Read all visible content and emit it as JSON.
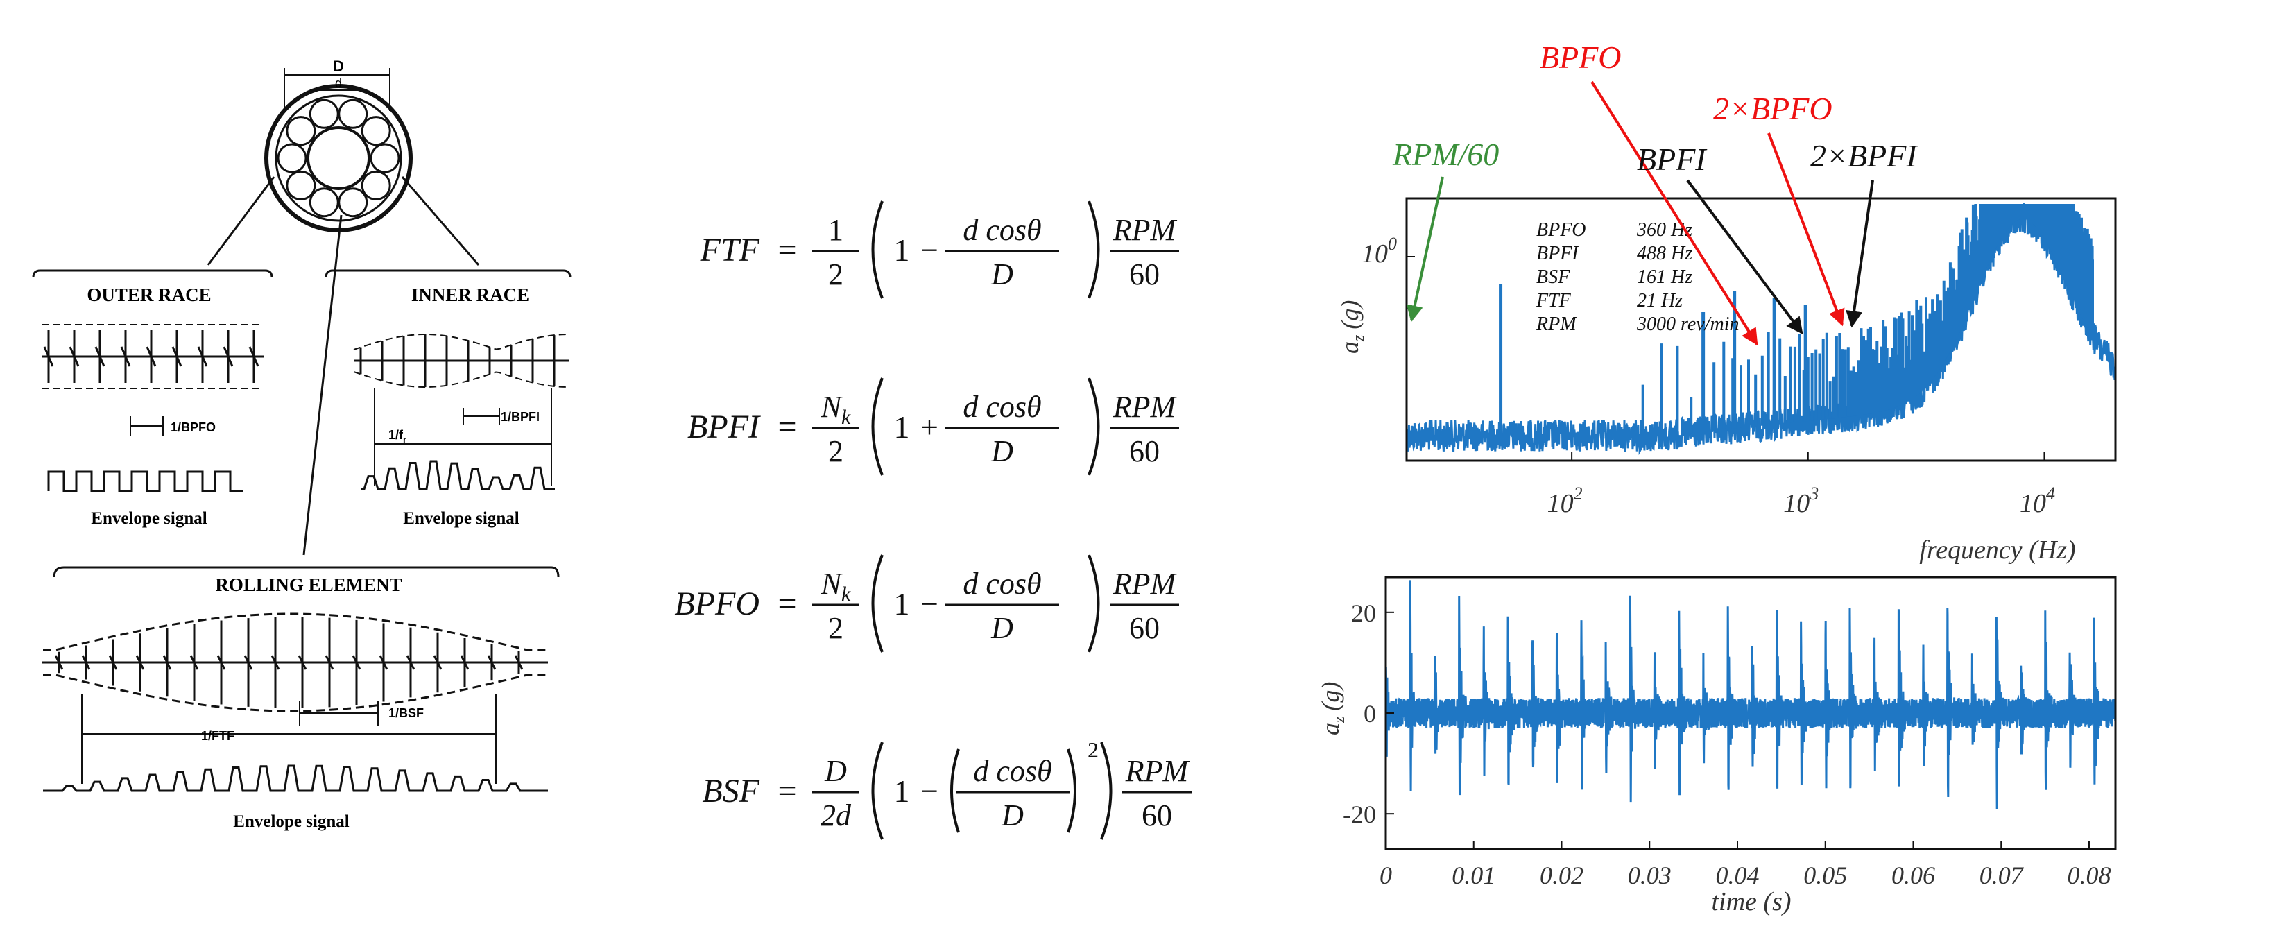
{
  "bearing_diagram": {
    "dimension_outer": "D",
    "dimension_inner": "d",
    "outer_race": {
      "title": "OUTER RACE",
      "period_label": "1/BPFO",
      "envelope_label": "Envelope signal"
    },
    "inner_race": {
      "title": "INNER RACE",
      "period_label": "1/BPFI",
      "rotation_label": "1/f",
      "rotation_subscript": "r",
      "envelope_label": "Envelope signal"
    },
    "rolling_element": {
      "title": "ROLLING ELEMENT",
      "ftf_label": "1/FTF",
      "bsf_label": "1/BSF",
      "envelope_label": "Envelope signal"
    }
  },
  "formulas": [
    {
      "name": "FTF",
      "coef_num": "1",
      "coef_den": "2",
      "sign": "−",
      "frac_num": "d cosθ",
      "frac_den": "D",
      "squared": false,
      "rpm": "RPM",
      "sixty": "60"
    },
    {
      "name": "BPFI",
      "coef_num": "N",
      "coef_sub": "k",
      "coef_den": "2",
      "sign": "+",
      "frac_num": "d cosθ",
      "frac_den": "D",
      "squared": false,
      "rpm": "RPM",
      "sixty": "60"
    },
    {
      "name": "BPFO",
      "coef_num": "N",
      "coef_sub": "k",
      "coef_den": "2",
      "sign": "−",
      "frac_num": "d cosθ",
      "frac_den": "D",
      "squared": false,
      "rpm": "RPM",
      "sixty": "60"
    },
    {
      "name": "BSF",
      "coef_num": "D",
      "coef_den": "2d",
      "sign": "−",
      "frac_num": "d cosθ",
      "frac_den": "D",
      "squared": true,
      "power": "2",
      "rpm": "RPM",
      "sixty": "60"
    }
  ],
  "spectrum": {
    "ylabel": "a",
    "ylabel_sub": "z",
    "ylabel_unit": "(g)",
    "xlabel": "frequency (Hz)",
    "x_ticks": [
      {
        "base": "10",
        "exp": "2"
      },
      {
        "base": "10",
        "exp": "3"
      },
      {
        "base": "10",
        "exp": "4"
      }
    ],
    "y_ticks": [
      {
        "base": "10",
        "exp": "0"
      }
    ],
    "legend": [
      {
        "name": "BPFO",
        "value": "360 Hz"
      },
      {
        "name": "BPFI",
        "value": "488 Hz"
      },
      {
        "name": "BSF",
        "value": "161 Hz"
      },
      {
        "name": "FTF",
        "value": "21 Hz"
      },
      {
        "name": "RPM",
        "value": "3000 rev/min"
      }
    ],
    "annotations": [
      {
        "label": "RPM/60",
        "color": "#3a8f3a"
      },
      {
        "label": "BPFO",
        "color": "#ee1111"
      },
      {
        "label": "2×BPFO",
        "color": "#ee1111"
      },
      {
        "label": "BPFI",
        "color": "#111111"
      },
      {
        "label": "2×BPFI",
        "color": "#111111"
      }
    ],
    "line_color": "#1f77c4"
  },
  "time_signal": {
    "ylabel": "a",
    "ylabel_sub": "z",
    "ylabel_unit": "(g)",
    "xlabel": "time (s)",
    "x_ticks": [
      "0",
      "0.01",
      "0.02",
      "0.03",
      "0.04",
      "0.05",
      "0.06",
      "0.07",
      "0.08"
    ],
    "y_ticks": [
      "20",
      "0",
      "-20"
    ],
    "line_color": "#1f77c4"
  },
  "chart_data": [
    {
      "type": "line",
      "xscale": "log",
      "yscale": "log",
      "xlabel": "frequency (Hz)",
      "ylabel": "a_z (g)",
      "xlim": [
        20,
        20000
      ],
      "grid": false,
      "legend_position": "top-left",
      "peaks": [
        {
          "x": 50,
          "label": "RPM/60"
        },
        {
          "x": 360,
          "label": "BPFO"
        },
        {
          "x": 488,
          "label": "BPFI"
        },
        {
          "x": 720,
          "label": "2×BPFO"
        },
        {
          "x": 976,
          "label": "2×BPFI"
        }
      ],
      "broadband_max_x": 8000
    },
    {
      "type": "line",
      "xlabel": "time (s)",
      "ylabel": "a_z (g)",
      "xlim": [
        0,
        0.083
      ],
      "ylim": [
        -27,
        27
      ],
      "grid": false
    }
  ]
}
